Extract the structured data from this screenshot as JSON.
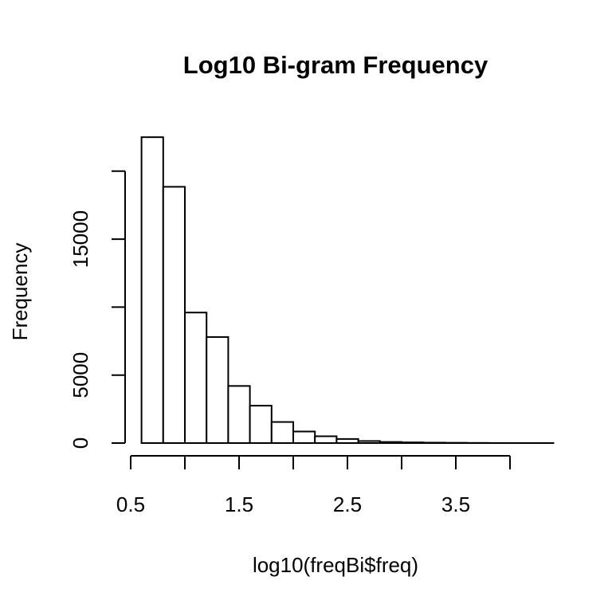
{
  "chart_data": {
    "type": "histogram",
    "title": "Log10 Bi-gram Frequency",
    "xlabel": "log10(freqBi$freq)",
    "ylabel": "Frequency",
    "bin_edges": [
      0.6,
      0.8,
      1.0,
      1.2,
      1.4,
      1.6,
      1.8,
      2.0,
      2.2,
      2.4,
      2.6,
      2.8,
      3.0,
      3.2,
      3.4,
      3.6,
      3.8,
      4.0,
      4.2,
      4.4
    ],
    "values": [
      22500,
      18850,
      9600,
      7800,
      4200,
      2750,
      1550,
      850,
      500,
      300,
      150,
      80,
      50,
      30,
      20,
      10,
      5,
      3,
      2
    ],
    "xlim": [
      0.5,
      4.0
    ],
    "ylim": [
      0,
      20000
    ],
    "x_ticks": [
      0.5,
      1.0,
      1.5,
      2.0,
      2.5,
      3.0,
      3.5,
      4.0
    ],
    "x_tick_labels": [
      "0.5",
      "",
      "1.5",
      "",
      "2.5",
      "",
      "3.5",
      ""
    ],
    "y_ticks": [
      0,
      5000,
      10000,
      15000,
      20000
    ],
    "y_tick_labels": [
      "0",
      "5000",
      "",
      "15000",
      ""
    ],
    "grid": false,
    "legend": "none",
    "bar_fill": "#ffffff",
    "bar_stroke": "#000000"
  }
}
